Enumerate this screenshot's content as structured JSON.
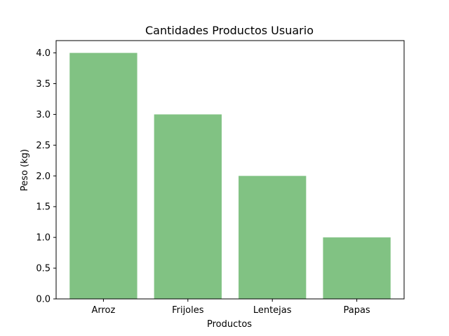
{
  "chart_data": {
    "type": "bar",
    "title": "Cantidades Productos Usuario",
    "xlabel": "Productos",
    "ylabel": "Peso (kg)",
    "categories": [
      "Arroz",
      "Frijoles",
      "Lentejas",
      "Papas"
    ],
    "values": [
      4.0,
      3.0,
      2.0,
      1.0
    ],
    "ylim": [
      0,
      4.2
    ],
    "yticks": [
      "0.0",
      "0.5",
      "1.0",
      "1.5",
      "2.0",
      "2.5",
      "3.0",
      "3.5",
      "4.0"
    ],
    "grid": false,
    "legend": "none",
    "bar_color": "#81c283"
  }
}
